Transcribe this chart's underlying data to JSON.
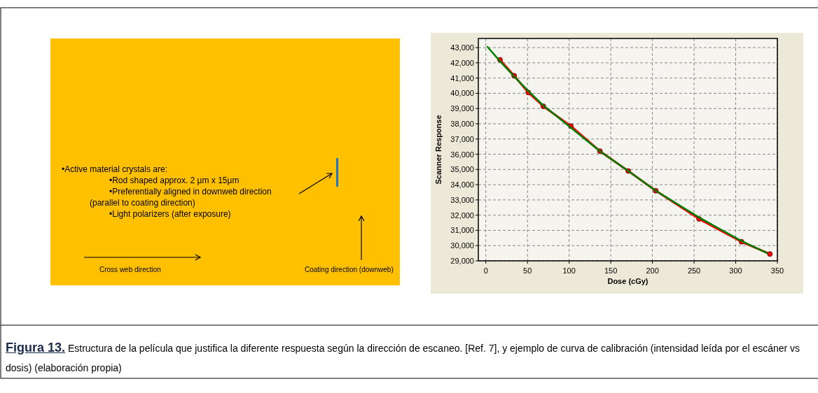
{
  "chart_data": [
    {
      "type": "other",
      "annotations": [
        "•Active material crystals are:",
        "•Rod shaped approx. 2 µm x 15µm",
        "•Preferentially aligned in downweb direction",
        "(parallel to coating direction)",
        "•Light polarizers (after exposure)",
        "Cross web direction",
        "Coating direction (downweb)"
      ]
    },
    {
      "type": "line",
      "xlabel": "Dose (cGy)",
      "ylabel": "Scanner Response",
      "xlim": [
        -9,
        350
      ],
      "ylim": [
        29000,
        43600
      ],
      "xticks": [
        0,
        50,
        100,
        150,
        200,
        250,
        300,
        350
      ],
      "yticks": [
        {
          "value": 29000,
          "label": "29,000"
        },
        {
          "value": 30000,
          "label": "30,000"
        },
        {
          "value": 31000,
          "label": "31,000"
        },
        {
          "value": 32000,
          "label": "32,000"
        },
        {
          "value": 33000,
          "label": "33,000"
        },
        {
          "value": 34000,
          "label": "34,000"
        },
        {
          "value": 35000,
          "label": "35,000"
        },
        {
          "value": 36000,
          "label": "36,000"
        },
        {
          "value": 37000,
          "label": "37,000"
        },
        {
          "value": 38000,
          "label": "38,000"
        },
        {
          "value": 39000,
          "label": "39,000"
        },
        {
          "value": 40000,
          "label": "40,000"
        },
        {
          "value": 41000,
          "label": "41,000"
        },
        {
          "value": 42000,
          "label": "42,000"
        },
        {
          "value": 43000,
          "label": "43,000"
        }
      ],
      "grid": true,
      "series": [
        {
          "color": "#ff0000",
          "marker": "circle",
          "x": [
            17,
            34,
            51,
            69,
            102,
            137,
            171,
            204,
            256,
            307,
            341
          ],
          "values": [
            42200,
            41150,
            40050,
            39150,
            37850,
            36200,
            34900,
            33600,
            31750,
            30250,
            29450
          ]
        },
        {
          "color": "#008000",
          "marker": "none",
          "x": [
            2,
            17,
            34,
            51,
            69,
            102,
            137,
            171,
            204,
            256,
            307,
            338
          ],
          "values": [
            43050,
            42100,
            41100,
            40150,
            39200,
            37750,
            36200,
            34900,
            33600,
            31850,
            30300,
            29500
          ]
        }
      ]
    },
    {
      "type": "other",
      "title": "Figura 13.",
      "annotations": [
        "Estructura de la película que justifica la diferente respuesta según la dirección de escaneo. [Ref. 7], y ejemplo de curva de calibración (intensidad leída por el escáner vs dosis) (elaboración propia)"
      ]
    }
  ]
}
